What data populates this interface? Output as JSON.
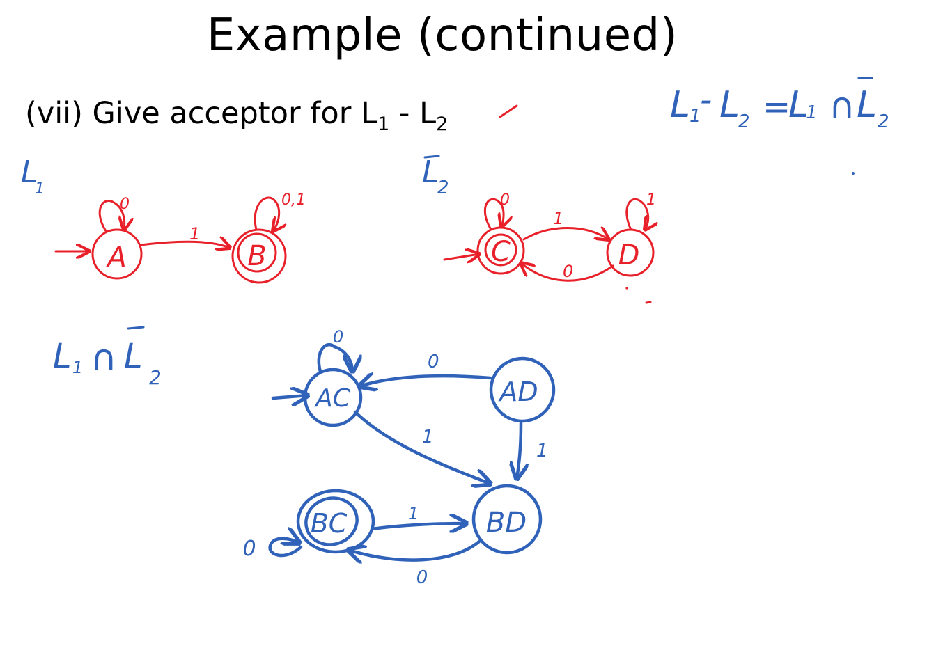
{
  "slide": {
    "title": "Example (continued)",
    "question": {
      "prefix": "(vii) Give acceptor for ",
      "L": "L",
      "sub1": "1",
      "minus": " - ",
      "sub2": "2"
    }
  },
  "annotations": {
    "identity": {
      "left": "L",
      "left_sub1": "1",
      "left_minus": "-",
      "left_L2": "L",
      "left_sub2": "2",
      "equals": "=",
      "right_L1": "L",
      "right_sub1": "1",
      "cap": "∩",
      "right_L2bar": "L",
      "right_sub2": "2"
    },
    "l1_label": {
      "L": "L",
      "sub": "1"
    },
    "l2bar_label": {
      "L": "L",
      "sub": "2"
    },
    "product_label": {
      "L1": "L",
      "sub1": "1",
      "cap": "∩",
      "L2": "L",
      "sub2": "2"
    }
  },
  "dfa_l1": {
    "color": "#e8202a",
    "states": [
      {
        "id": "A",
        "accepting": false,
        "start": true
      },
      {
        "id": "B",
        "accepting": true,
        "start": false
      }
    ],
    "transitions": [
      {
        "from": "A",
        "to": "A",
        "label": "0"
      },
      {
        "from": "A",
        "to": "B",
        "label": "1"
      },
      {
        "from": "B",
        "to": "B",
        "label": "0,1"
      }
    ]
  },
  "dfa_l2bar": {
    "color": "#e8202a",
    "states": [
      {
        "id": "C",
        "accepting": true,
        "start": true
      },
      {
        "id": "D",
        "accepting": false,
        "start": false
      }
    ],
    "transitions": [
      {
        "from": "C",
        "to": "C",
        "label": "0"
      },
      {
        "from": "C",
        "to": "D",
        "label": "1"
      },
      {
        "from": "D",
        "to": "C",
        "label": "0"
      },
      {
        "from": "D",
        "to": "D",
        "label": "1"
      }
    ]
  },
  "dfa_product": {
    "color": "#2f62b8",
    "states": [
      {
        "id": "AC",
        "accepting": false,
        "start": true
      },
      {
        "id": "AD",
        "accepting": false,
        "start": false
      },
      {
        "id": "BC",
        "accepting": true,
        "start": false
      },
      {
        "id": "BD",
        "accepting": false,
        "start": false
      }
    ],
    "transitions": [
      {
        "from": "AC",
        "to": "AC",
        "label": "0"
      },
      {
        "from": "AD",
        "to": "AC",
        "label": "0"
      },
      {
        "from": "AC",
        "to": "BD",
        "label": "1"
      },
      {
        "from": "AD",
        "to": "BD",
        "label": "1"
      },
      {
        "from": "BC",
        "to": "BD",
        "label": "1"
      },
      {
        "from": "BD",
        "to": "BC",
        "label": "0"
      },
      {
        "from": "BC",
        "to": "BC",
        "label": "0"
      }
    ]
  }
}
